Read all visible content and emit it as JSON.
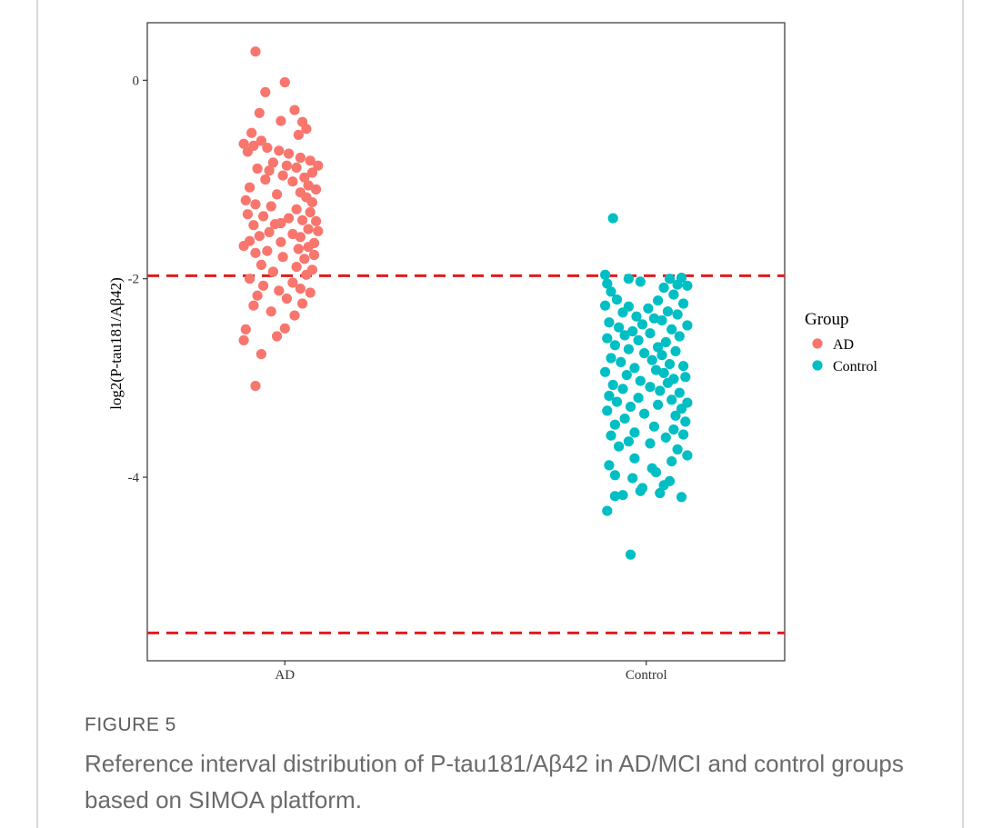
{
  "figure": {
    "label": "FIGURE 5",
    "caption": "Reference interval distribution of P-tau181/Aβ42 in AD/MCI and control groups based on SIMOA platform."
  },
  "chart_data": {
    "type": "scatter",
    "title": "",
    "xlabel": "",
    "ylabel": "log2(P-tau181/Aβ42)",
    "categories": [
      "AD",
      "Control"
    ],
    "ylim": [
      -5.85,
      0.58
    ],
    "yticks": [
      {
        "value": 0,
        "label": "0"
      },
      {
        "value": -2,
        "label": "-2"
      },
      {
        "value": -4,
        "label": "-4"
      }
    ],
    "grid": false,
    "legend": {
      "title": "Group",
      "position": "right",
      "entries": [
        {
          "label": "AD",
          "color": "#F8766D"
        },
        {
          "label": "Control",
          "color": "#00BFC4"
        }
      ]
    },
    "reference_lines": [
      {
        "y": -1.97,
        "color": "#E31A1C",
        "style": "dashed"
      },
      {
        "y": -5.57,
        "color": "#E31A1C",
        "style": "dashed"
      }
    ],
    "series": [
      {
        "name": "AD",
        "category": "AD",
        "color": "#F8766D",
        "points": [
          [
            -0.15,
            0.29
          ],
          [
            -0.1,
            -0.12
          ],
          [
            0.0,
            -0.02
          ],
          [
            0.05,
            -0.3
          ],
          [
            -0.13,
            -0.33
          ],
          [
            -0.02,
            -0.41
          ],
          [
            0.09,
            -0.42
          ],
          [
            0.11,
            -0.49
          ],
          [
            -0.17,
            -0.53
          ],
          [
            0.07,
            -0.55
          ],
          [
            -0.12,
            -0.61
          ],
          [
            -0.21,
            -0.64
          ],
          [
            -0.16,
            -0.66
          ],
          [
            -0.09,
            -0.68
          ],
          [
            -0.03,
            -0.71
          ],
          [
            0.02,
            -0.74
          ],
          [
            0.08,
            -0.78
          ],
          [
            0.13,
            -0.81
          ],
          [
            -0.19,
            -0.72
          ],
          [
            -0.06,
            -0.83
          ],
          [
            0.01,
            -0.86
          ],
          [
            0.06,
            -0.88
          ],
          [
            0.17,
            -0.86
          ],
          [
            -0.14,
            -0.89
          ],
          [
            -0.08,
            -0.91
          ],
          [
            0.14,
            -0.93
          ],
          [
            -0.01,
            -0.96
          ],
          [
            0.1,
            -0.98
          ],
          [
            -0.1,
            -1.0
          ],
          [
            0.04,
            -1.02
          ],
          [
            0.12,
            -1.06
          ],
          [
            -0.18,
            -1.08
          ],
          [
            0.16,
            -1.1
          ],
          [
            0.08,
            -1.13
          ],
          [
            -0.04,
            -1.15
          ],
          [
            0.11,
            -1.18
          ],
          [
            -0.2,
            -1.21
          ],
          [
            0.14,
            -1.23
          ],
          [
            -0.15,
            -1.25
          ],
          [
            -0.07,
            -1.27
          ],
          [
            0.06,
            -1.3
          ],
          [
            0.13,
            -1.33
          ],
          [
            -0.19,
            -1.35
          ],
          [
            -0.11,
            -1.37
          ],
          [
            0.02,
            -1.39
          ],
          [
            0.09,
            -1.41
          ],
          [
            0.16,
            -1.42
          ],
          [
            -0.02,
            -1.44
          ],
          [
            -0.05,
            -1.45
          ],
          [
            -0.16,
            -1.46
          ],
          [
            0.12,
            -1.5
          ],
          [
            0.17,
            -1.52
          ],
          [
            -0.08,
            -1.53
          ],
          [
            0.04,
            -1.55
          ],
          [
            -0.13,
            -1.57
          ],
          [
            0.08,
            -1.58
          ],
          [
            -0.18,
            -1.62
          ],
          [
            -0.02,
            -1.63
          ],
          [
            0.15,
            -1.64
          ],
          [
            -0.21,
            -1.67
          ],
          [
            0.12,
            -1.68
          ],
          [
            0.07,
            -1.7
          ],
          [
            -0.09,
            -1.72
          ],
          [
            -0.15,
            -1.74
          ],
          [
            0.15,
            -1.76
          ],
          [
            -0.01,
            -1.78
          ],
          [
            0.1,
            -1.8
          ],
          [
            -0.12,
            -1.86
          ],
          [
            0.06,
            -1.88
          ],
          [
            0.14,
            -1.91
          ],
          [
            -0.06,
            -1.93
          ],
          [
            0.11,
            -1.96
          ],
          [
            -0.18,
            -2.0
          ],
          [
            0.04,
            -2.04
          ],
          [
            -0.11,
            -2.07
          ],
          [
            0.08,
            -2.1
          ],
          [
            -0.03,
            -2.12
          ],
          [
            0.13,
            -2.14
          ],
          [
            -0.14,
            -2.17
          ],
          [
            0.01,
            -2.2
          ],
          [
            0.09,
            -2.25
          ],
          [
            -0.16,
            -2.27
          ],
          [
            -0.07,
            -2.33
          ],
          [
            0.05,
            -2.37
          ],
          [
            -0.2,
            -2.51
          ],
          [
            0.0,
            -2.5
          ],
          [
            -0.04,
            -2.58
          ],
          [
            -0.21,
            -2.62
          ],
          [
            -0.12,
            -2.76
          ],
          [
            -0.15,
            -3.08
          ]
        ]
      },
      {
        "name": "Control",
        "category": "Control",
        "color": "#00BFC4",
        "points": [
          [
            -0.17,
            -1.39
          ],
          [
            -0.21,
            -1.96
          ],
          [
            -0.09,
            -2.0
          ],
          [
            0.12,
            -2.0
          ],
          [
            0.18,
            -1.99
          ],
          [
            0.21,
            -2.07
          ],
          [
            0.16,
            -2.06
          ],
          [
            -0.2,
            -2.05
          ],
          [
            -0.03,
            -2.03
          ],
          [
            0.09,
            -2.09
          ],
          [
            -0.18,
            -2.13
          ],
          [
            0.14,
            -2.16
          ],
          [
            -0.15,
            -2.21
          ],
          [
            0.06,
            -2.22
          ],
          [
            0.19,
            -2.25
          ],
          [
            -0.21,
            -2.27
          ],
          [
            -0.09,
            -2.28
          ],
          [
            0.01,
            -2.3
          ],
          [
            0.11,
            -2.33
          ],
          [
            -0.12,
            -2.34
          ],
          [
            0.16,
            -2.36
          ],
          [
            -0.05,
            -2.38
          ],
          [
            0.04,
            -2.4
          ],
          [
            0.08,
            -2.42
          ],
          [
            -0.19,
            -2.44
          ],
          [
            -0.02,
            -2.46
          ],
          [
            0.21,
            -2.47
          ],
          [
            -0.14,
            -2.49
          ],
          [
            0.13,
            -2.51
          ],
          [
            -0.07,
            -2.53
          ],
          [
            0.02,
            -2.55
          ],
          [
            -0.11,
            -2.57
          ],
          [
            0.17,
            -2.58
          ],
          [
            -0.2,
            -2.6
          ],
          [
            -0.04,
            -2.62
          ],
          [
            0.1,
            -2.64
          ],
          [
            -0.16,
            -2.67
          ],
          [
            0.06,
            -2.69
          ],
          [
            -0.09,
            -2.71
          ],
          [
            0.15,
            -2.73
          ],
          [
            -0.01,
            -2.75
          ],
          [
            0.08,
            -2.77
          ],
          [
            -0.18,
            -2.8
          ],
          [
            0.03,
            -2.82
          ],
          [
            -0.13,
            -2.84
          ],
          [
            0.12,
            -2.86
          ],
          [
            0.19,
            -2.88
          ],
          [
            -0.06,
            -2.9
          ],
          [
            0.05,
            -2.92
          ],
          [
            -0.21,
            -2.94
          ],
          [
            0.09,
            -2.95
          ],
          [
            -0.1,
            -2.97
          ],
          [
            0.2,
            -2.99
          ],
          [
            0.14,
            -3.01
          ],
          [
            -0.03,
            -3.03
          ],
          [
            0.11,
            -3.05
          ],
          [
            -0.17,
            -3.07
          ],
          [
            0.02,
            -3.09
          ],
          [
            -0.12,
            -3.11
          ],
          [
            0.07,
            -3.13
          ],
          [
            0.17,
            -3.15
          ],
          [
            -0.19,
            -3.18
          ],
          [
            -0.04,
            -3.2
          ],
          [
            0.13,
            -3.22
          ],
          [
            -0.15,
            -3.24
          ],
          [
            0.21,
            -3.25
          ],
          [
            0.06,
            -3.27
          ],
          [
            -0.08,
            -3.29
          ],
          [
            0.18,
            -3.31
          ],
          [
            -0.2,
            -3.33
          ],
          [
            -0.01,
            -3.36
          ],
          [
            0.15,
            -3.38
          ],
          [
            -0.11,
            -3.41
          ],
          [
            0.2,
            -3.44
          ],
          [
            -0.16,
            -3.47
          ],
          [
            0.04,
            -3.49
          ],
          [
            0.14,
            -3.52
          ],
          [
            -0.06,
            -3.55
          ],
          [
            0.19,
            -3.57
          ],
          [
            -0.18,
            -3.58
          ],
          [
            0.1,
            -3.6
          ],
          [
            -0.09,
            -3.64
          ],
          [
            0.02,
            -3.66
          ],
          [
            -0.14,
            -3.69
          ],
          [
            0.16,
            -3.72
          ],
          [
            0.21,
            -3.78
          ],
          [
            -0.06,
            -3.81
          ],
          [
            0.13,
            -3.84
          ],
          [
            -0.19,
            -3.88
          ],
          [
            0.03,
            -3.91
          ],
          [
            0.05,
            -3.95
          ],
          [
            -0.16,
            -3.98
          ],
          [
            -0.07,
            -4.01
          ],
          [
            0.12,
            -4.04
          ],
          [
            0.09,
            -4.08
          ],
          [
            -0.02,
            -4.11
          ],
          [
            -0.03,
            -4.14
          ],
          [
            0.07,
            -4.16
          ],
          [
            -0.12,
            -4.18
          ],
          [
            -0.16,
            -4.19
          ],
          [
            0.18,
            -4.2
          ],
          [
            -0.2,
            -4.34
          ],
          [
            -0.08,
            -4.78
          ]
        ]
      }
    ]
  }
}
